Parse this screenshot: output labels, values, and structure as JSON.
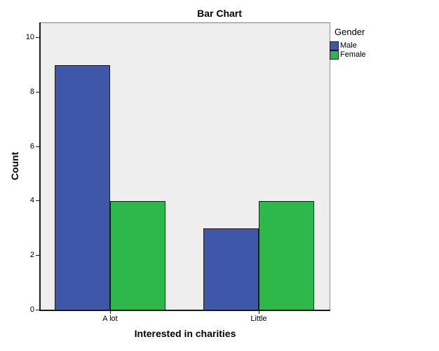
{
  "chart_data": {
    "type": "bar",
    "title": "Bar Chart",
    "xlabel": "Interested in charities",
    "ylabel": "Count",
    "categories": [
      "A lot",
      "Little"
    ],
    "series": [
      {
        "name": "Male",
        "color": "#3E57A9",
        "values": [
          9,
          3
        ]
      },
      {
        "name": "Female",
        "color": "#2FB84A",
        "values": [
          4,
          4
        ]
      }
    ],
    "y_ticks": [
      0,
      2,
      4,
      6,
      8,
      10
    ],
    "ylim": [
      0,
      10.57
    ],
    "legend_title": "Gender",
    "legend_position": "outside-top-right",
    "grid": false,
    "plot_bg": "#EEEEEE",
    "bar_border_color": "#1A1A1A"
  }
}
